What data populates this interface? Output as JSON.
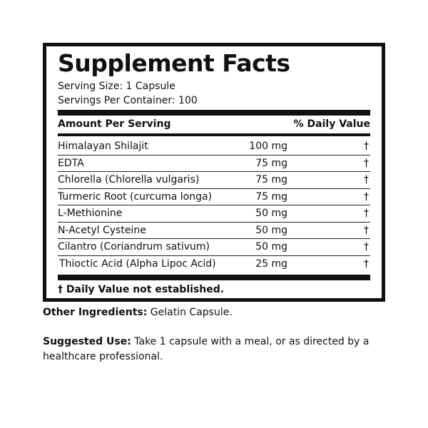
{
  "title": "Supplement Facts",
  "serving_size": "Serving Size: 1 Capsule",
  "servings_per_container": "Servings Per Container: 100",
  "header": {
    "amount": "Amount Per Serving",
    "daily_value": "% Daily Value"
  },
  "rows": [
    {
      "name": "Himalayan Shilajit",
      "amount": "100 mg",
      "dv": "†"
    },
    {
      "name": "EDTA",
      "amount": "75 mg",
      "dv": "†"
    },
    {
      "name": "Chlorella (Chlorella vulgaris)",
      "amount": "75 mg",
      "dv": "†"
    },
    {
      "name": "Turmeric Root (curcuma longa)",
      "amount": "75 mg",
      "dv": "†"
    },
    {
      "name": "L-Methionine",
      "amount": "50 mg",
      "dv": "†"
    },
    {
      "name": "N-Acetyl Cysteine",
      "amount": "50 mg",
      "dv": "†"
    },
    {
      "name": "Cilantro (Coriandrum sativum)",
      "amount": "50 mg",
      "dv": "†"
    },
    {
      "name": "Thioctic Acid (Alpha Lipoc Acid)",
      "amount": "25 mg",
      "dv": "†"
    }
  ],
  "footnote": "† Daily Value not established.",
  "other_ingredients": {
    "label": "Other Ingredients:",
    "text": " Gelatin Capsule."
  },
  "suggested_use": {
    "label": "Suggested Use:",
    "text": " Take 1 capsule with a meal, or as directed by a healthcare professional."
  }
}
